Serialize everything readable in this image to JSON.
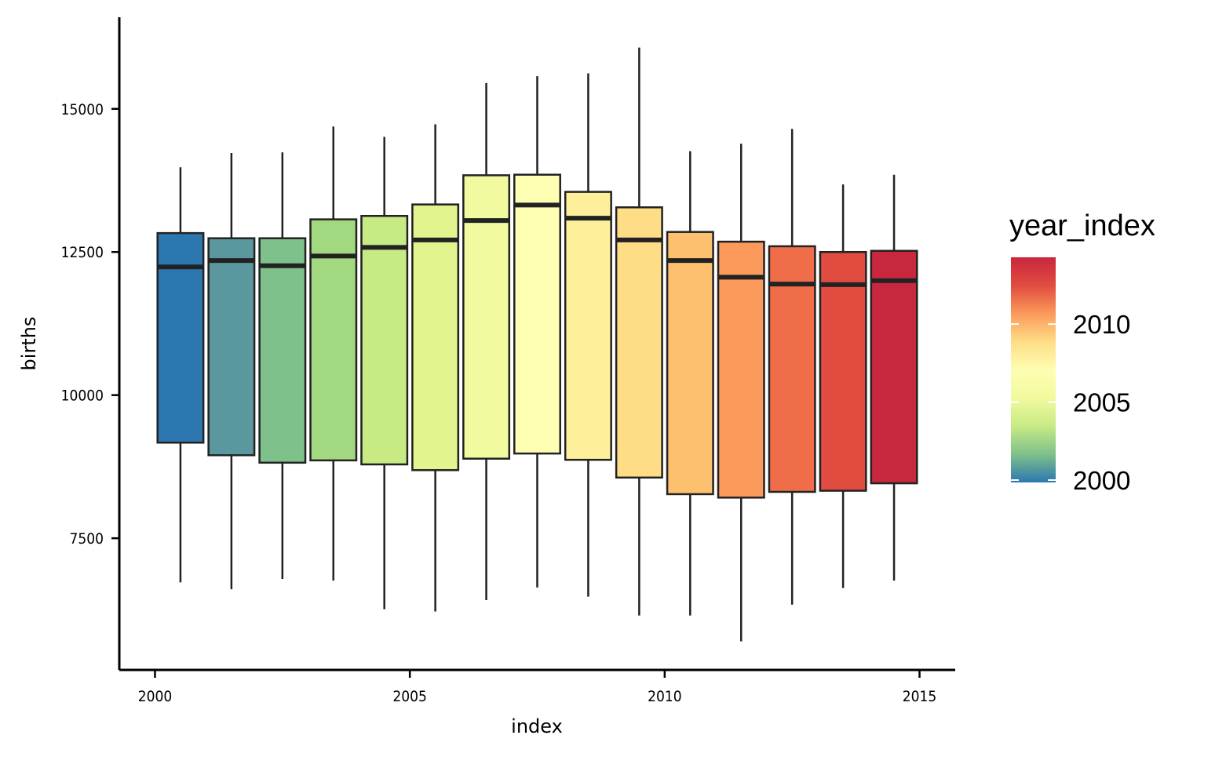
{
  "chart_data": {
    "type": "boxplot",
    "title": "",
    "xlabel": "index",
    "ylabel": "births",
    "xlim": [
      1999.3,
      2015.7
    ],
    "ylim": [
      5200,
      16600
    ],
    "x_ticks": [
      2000,
      2005,
      2010,
      2015
    ],
    "y_ticks": [
      7500,
      10000,
      12500,
      15000
    ],
    "x_tick_labels": [
      "2000",
      "2005",
      "2010",
      "2015"
    ],
    "y_tick_labels": [
      "7500",
      "10000",
      "12500",
      "15000"
    ],
    "grid": false,
    "legend": {
      "title": "year_index",
      "type": "colorbar",
      "position": "right",
      "range": [
        2000,
        2014
      ],
      "ticks": [
        2000,
        2005,
        2010
      ],
      "tick_labels": [
        "2000",
        "2005",
        "2010"
      ]
    },
    "boxes": [
      {
        "x": 2000.5,
        "year_index": 2000,
        "whisker_low": 6730,
        "q1": 9170,
        "median": 12240,
        "q3": 12830,
        "whisker_high": 13980,
        "color": "#2c77b0"
      },
      {
        "x": 2001.5,
        "year_index": 2001,
        "whisker_low": 6610,
        "q1": 8950,
        "median": 12350,
        "q3": 12740,
        "whisker_high": 14230,
        "color": "#5a979e"
      },
      {
        "x": 2002.5,
        "year_index": 2002,
        "whisker_low": 6790,
        "q1": 8820,
        "median": 12260,
        "q3": 12740,
        "whisker_high": 14240,
        "color": "#7ec18a"
      },
      {
        "x": 2003.5,
        "year_index": 2003,
        "whisker_low": 6760,
        "q1": 8860,
        "median": 12430,
        "q3": 13070,
        "whisker_high": 14690,
        "color": "#a1d880"
      },
      {
        "x": 2004.5,
        "year_index": 2004,
        "whisker_low": 6260,
        "q1": 8790,
        "median": 12580,
        "q3": 13130,
        "whisker_high": 14510,
        "color": "#c7ea85"
      },
      {
        "x": 2005.5,
        "year_index": 2005,
        "whisker_low": 6220,
        "q1": 8690,
        "median": 12710,
        "q3": 13330,
        "whisker_high": 14730,
        "color": "#e2f48e"
      },
      {
        "x": 2006.5,
        "year_index": 2006,
        "whisker_low": 6420,
        "q1": 8890,
        "median": 13050,
        "q3": 13840,
        "whisker_high": 15450,
        "color": "#f1fa9f"
      },
      {
        "x": 2007.5,
        "year_index": 2007,
        "whisker_low": 6640,
        "q1": 8980,
        "median": 13320,
        "q3": 13850,
        "whisker_high": 15570,
        "color": "#fefeb2"
      },
      {
        "x": 2008.5,
        "year_index": 2008,
        "whisker_low": 6480,
        "q1": 8870,
        "median": 13090,
        "q3": 13550,
        "whisker_high": 15620,
        "color": "#feef9a"
      },
      {
        "x": 2009.5,
        "year_index": 2009,
        "whisker_low": 6150,
        "q1": 8560,
        "median": 12710,
        "q3": 13280,
        "whisker_high": 16070,
        "color": "#fedd86"
      },
      {
        "x": 2010.5,
        "year_index": 2010,
        "whisker_low": 6150,
        "q1": 8270,
        "median": 12350,
        "q3": 12850,
        "whisker_high": 14260,
        "color": "#fdc06e"
      },
      {
        "x": 2011.5,
        "year_index": 2011,
        "whisker_low": 5700,
        "q1": 8210,
        "median": 12060,
        "q3": 12680,
        "whisker_high": 14390,
        "color": "#fb9a5b"
      },
      {
        "x": 2012.5,
        "year_index": 2012,
        "whisker_low": 6340,
        "q1": 8310,
        "median": 11940,
        "q3": 12600,
        "whisker_high": 14650,
        "color": "#f06d4a"
      },
      {
        "x": 2013.5,
        "year_index": 2013,
        "whisker_low": 6630,
        "q1": 8330,
        "median": 11930,
        "q3": 12500,
        "whisker_high": 13680,
        "color": "#e04c40"
      },
      {
        "x": 2014.5,
        "year_index": 2014,
        "whisker_low": 6760,
        "q1": 8460,
        "median": 12000,
        "q3": 12520,
        "whisker_high": 13850,
        "color": "#c9273d"
      }
    ],
    "colorscale": [
      "#2c77b0",
      "#7ec18a",
      "#c7ea85",
      "#f1fa9f",
      "#fefeb2",
      "#fedd86",
      "#fb9a5b",
      "#e04c40",
      "#c9273d"
    ]
  }
}
